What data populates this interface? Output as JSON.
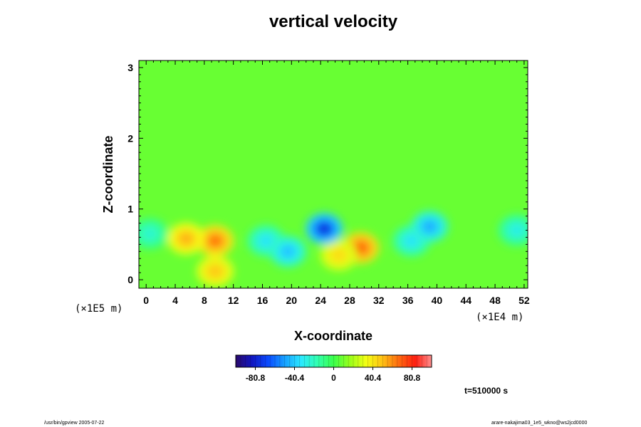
{
  "chart_data": {
    "type": "heatmap",
    "title": "vertical velocity",
    "xlabel": "X-coordinate",
    "ylabel": "Z-coordinate",
    "x_unit": "(×1E4 m)",
    "y_unit": "(×1E5 m)",
    "xlim": [
      -1,
      52.5
    ],
    "ylim": [
      -0.12,
      3.1
    ],
    "x_ticks": [
      "0",
      "4",
      "8",
      "12",
      "16",
      "20",
      "24",
      "28",
      "32",
      "36",
      "40",
      "44",
      "48",
      "52"
    ],
    "y_ticks": [
      "0",
      "1",
      "2",
      "3"
    ],
    "colorbar": {
      "range": [
        -101,
        101
      ],
      "ticks": [
        "-80.8",
        "-40.4",
        "0",
        "40.4",
        "80.8"
      ],
      "colors": [
        "#2a0a6b",
        "#1016c0",
        "#0a4cff",
        "#17a0ff",
        "#2be8ff",
        "#31ffb0",
        "#3aff4a",
        "#9aff1a",
        "#f4ff14",
        "#ffc014",
        "#ff6a10",
        "#ff1e10",
        "#ff8f8f"
      ]
    },
    "background_value": 8,
    "features": [
      {
        "x": 9.5,
        "z": 0.55,
        "value": 68
      },
      {
        "x": 5.5,
        "z": 0.58,
        "value": 55
      },
      {
        "x": 29.5,
        "z": 0.45,
        "value": 72
      },
      {
        "x": 26.5,
        "z": 0.35,
        "value": 45
      },
      {
        "x": 9.5,
        "z": 0.12,
        "value": 50
      },
      {
        "x": 16.5,
        "z": 0.55,
        "value": -35
      },
      {
        "x": 19.5,
        "z": 0.4,
        "value": -45
      },
      {
        "x": 24.5,
        "z": 0.72,
        "value": -80
      },
      {
        "x": 36.5,
        "z": 0.55,
        "value": -35
      },
      {
        "x": 39.0,
        "z": 0.75,
        "value": -50
      },
      {
        "x": 51.0,
        "z": 0.7,
        "value": -30
      },
      {
        "x": 0.5,
        "z": 0.65,
        "value": -25
      }
    ],
    "time_label": "t=510000 s"
  },
  "footer": {
    "left": "/usr/bin/gpview 2005-07-22",
    "right": "arare-nakajima03_1e5_wkno@ws2jcd0000"
  }
}
